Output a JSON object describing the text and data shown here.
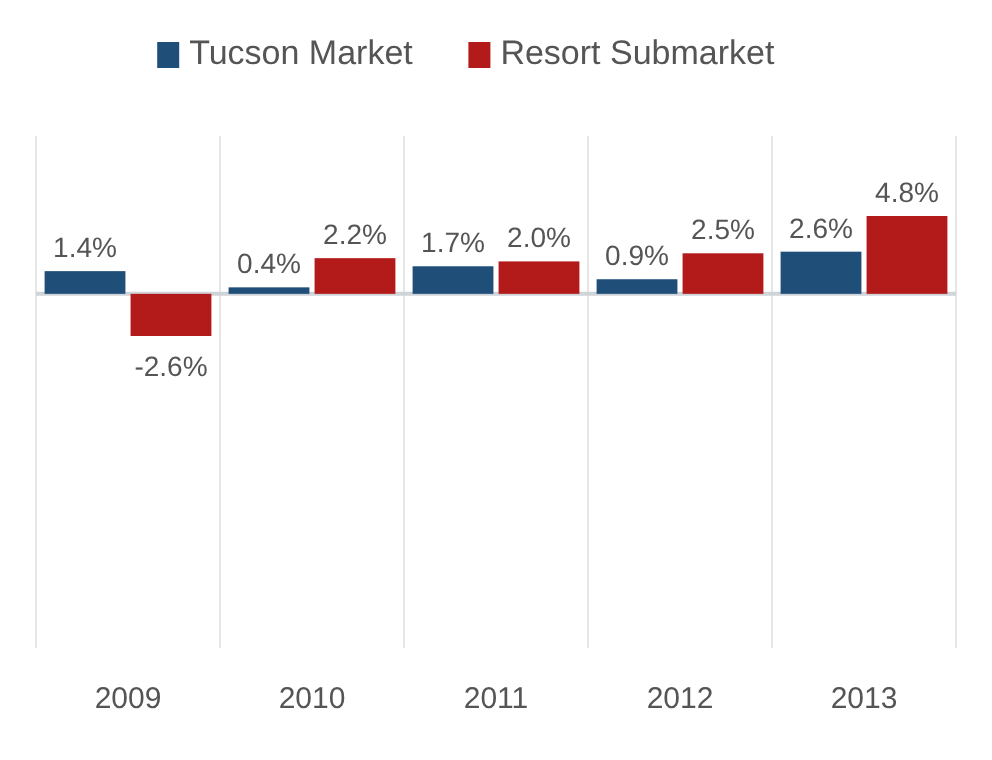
{
  "chart_data": {
    "type": "bar",
    "categories": [
      "2009",
      "2010",
      "2011",
      "2012",
      "2013"
    ],
    "series": [
      {
        "name": "Tucson Market",
        "color": "#1f4e79",
        "values": [
          1.4,
          0.4,
          1.7,
          0.9,
          2.6
        ],
        "value_labels": [
          "1.4%",
          "0.4%",
          "1.7%",
          "0.9%",
          "2.6%"
        ]
      },
      {
        "name": "Resort Submarket",
        "color": "#b31b1b",
        "values": [
          -2.6,
          2.2,
          2.0,
          2.5,
          4.8
        ],
        "value_labels": [
          "-2.6%",
          "2.2%",
          "2.0%",
          "2.5%",
          "4.8%"
        ]
      }
    ],
    "legend": "top",
    "grid": "x"
  }
}
